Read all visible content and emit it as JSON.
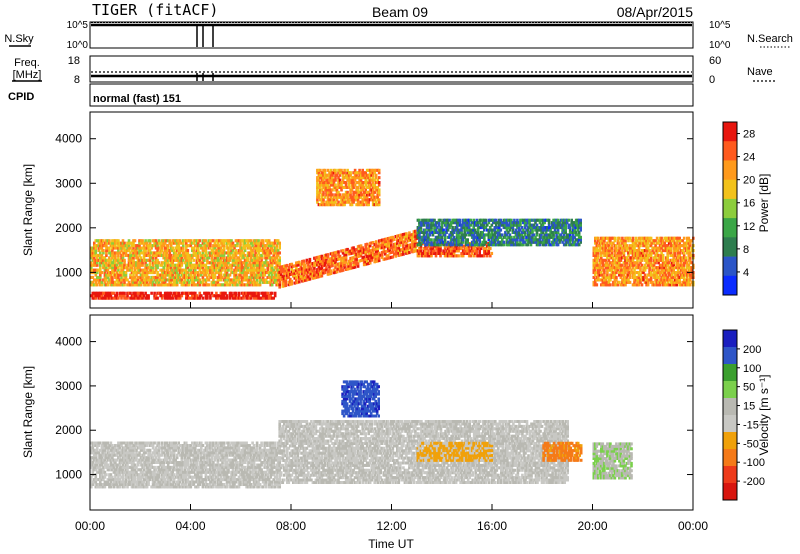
{
  "header": {
    "station": "TIGER (fitACF)",
    "beam": "Beam 09",
    "date": "08/Apr/2015"
  },
  "status_panels": {
    "nsky": {
      "label": "N.Sky",
      "ticks": [
        "10^5",
        "10^0"
      ]
    },
    "nsearch": {
      "label": "N.Search",
      "ticks": [
        "10^5",
        "10^0"
      ]
    },
    "freq": {
      "label_lines": [
        "Freq.",
        "[MHz]"
      ],
      "ticks": [
        "18",
        "8"
      ]
    },
    "nave": {
      "label": "Nave",
      "ticks": [
        "60",
        "0"
      ]
    },
    "cpid": {
      "label": "CPID",
      "value": "normal (fast) 151"
    }
  },
  "colors": {
    "power": [
      "#0b2cff",
      "#2b55c7",
      "#2e7d4e",
      "#3aa646",
      "#8ccd3c",
      "#f2c21b",
      "#ff9a1c",
      "#ff5a1e",
      "#e8160e"
    ],
    "velocity": [
      "#1a1fbf",
      "#2f56c8",
      "#3b9f2e",
      "#7bd04c",
      "#b9b9b2",
      "#c8c8c4",
      "#f0a10a",
      "#f57a18",
      "#ee3a1a",
      "#d8150e"
    ]
  },
  "chart_data": [
    {
      "type": "heatmap",
      "name": "power",
      "ylabel": "Slant Range [km]",
      "y_ticks": [
        "1000",
        "2000",
        "3000",
        "4000"
      ],
      "ylim": [
        200,
        4600
      ],
      "x_ticks": [
        "00:00",
        "04:00",
        "08:00",
        "12:00",
        "16:00",
        "20:00",
        "00:00"
      ],
      "colorbar": {
        "label": "Power [dB]",
        "ticks": [
          "4",
          "8",
          "12",
          "16",
          "20",
          "24",
          "28"
        ],
        "range": [
          0,
          30
        ]
      },
      "features": [
        {
          "t_start": "00:00",
          "t_end": "07:20",
          "range_km": [
            400,
            560
          ],
          "value_db": 29
        },
        {
          "t_start": "00:00",
          "t_end": "07:30",
          "range_km": [
            700,
            1700
          ],
          "value_db": 20
        },
        {
          "t_start": "07:30",
          "t_end": "13:00",
          "range_km": [
            650,
            2150
          ],
          "value_db": 24,
          "note": "sloped band"
        },
        {
          "t_start": "09:00",
          "t_end": "11:30",
          "range_km": [
            2500,
            3300
          ],
          "value_db": 22
        },
        {
          "t_start": "13:00",
          "t_end": "16:00",
          "range_km": [
            1350,
            1650
          ],
          "value_db": 25
        },
        {
          "t_start": "13:00",
          "t_end": "19:30",
          "range_km": [
            1600,
            2200
          ],
          "value_db": 8
        },
        {
          "t_start": "20:00",
          "t_end": "24:00",
          "range_km": [
            700,
            1800
          ],
          "value_db": 22
        }
      ]
    },
    {
      "type": "heatmap",
      "name": "velocity",
      "ylabel": "Slant Range [km]",
      "y_ticks": [
        "1000",
        "2000",
        "3000",
        "4000"
      ],
      "ylim": [
        200,
        4600
      ],
      "x_ticks": [
        "00:00",
        "04:00",
        "08:00",
        "12:00",
        "16:00",
        "20:00",
        "00:00"
      ],
      "xlabel": "Time UT",
      "colorbar": {
        "label": "Velocity [m s⁻¹]",
        "ticks": [
          "200",
          "100",
          "50",
          "15",
          "-15",
          "-50",
          "-100",
          "-200"
        ],
        "range": [
          -250,
          250
        ]
      },
      "features": [
        {
          "t_start": "00:00",
          "t_end": "07:30",
          "range_km": [
            700,
            1700
          ],
          "value_ms": 0
        },
        {
          "t_start": "07:30",
          "t_end": "19:00",
          "range_km": [
            800,
            2200
          ],
          "value_ms": 0
        },
        {
          "t_start": "10:00",
          "t_end": "11:30",
          "range_km": [
            2300,
            3100
          ],
          "value_ms": 180
        },
        {
          "t_start": "13:00",
          "t_end": "16:00",
          "range_km": [
            1300,
            1700
          ],
          "value_ms": -60
        },
        {
          "t_start": "18:00",
          "t_end": "19:30",
          "range_km": [
            1300,
            1700
          ],
          "value_ms": -120
        },
        {
          "t_start": "20:00",
          "t_end": "21:30",
          "range_km": [
            900,
            1700
          ],
          "value_ms": 40
        }
      ]
    }
  ]
}
